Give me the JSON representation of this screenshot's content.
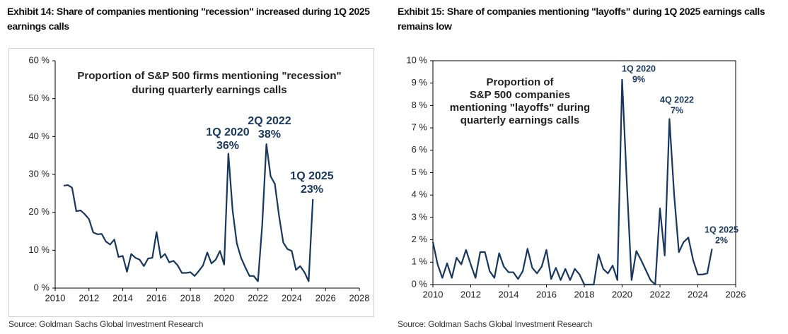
{
  "chart_data": [
    {
      "type": "line",
      "title": "Exhibit 14: Share of companies mentioning \"recession\" increased during 1Q 2025 earnings calls",
      "source": "Source: Goldman Sachs Global Investment Research",
      "inset": [
        "Proportion of S&P 500 firms mentioning \"recession\"",
        "during quarterly earnings calls"
      ],
      "annotations": [
        [
          "1Q 2020",
          "36%"
        ],
        [
          "2Q 2022",
          "38%"
        ],
        [
          "1Q 2025",
          "23%"
        ]
      ],
      "color": "#17375e",
      "x": [
        2010.5,
        2010.75,
        2011,
        2011.25,
        2011.5,
        2011.75,
        2012,
        2012.25,
        2012.5,
        2012.75,
        2013,
        2013.25,
        2013.5,
        2013.75,
        2014,
        2014.25,
        2014.5,
        2014.75,
        2015,
        2015.25,
        2015.5,
        2015.75,
        2016,
        2016.25,
        2016.5,
        2016.75,
        2017,
        2017.25,
        2017.5,
        2017.75,
        2018,
        2018.25,
        2018.5,
        2018.75,
        2019,
        2019.25,
        2019.5,
        2019.75,
        2020,
        2020.25,
        2020.5,
        2020.75,
        2021,
        2021.25,
        2021.5,
        2021.75,
        2022,
        2022.25,
        2022.5,
        2022.75,
        2023,
        2023.25,
        2023.5,
        2023.75,
        2024,
        2024.25,
        2024.5,
        2024.75,
        2025,
        2025.25
      ],
      "values": [
        27,
        27.2,
        26.5,
        20.3,
        20.5,
        19.5,
        18.2,
        14.7,
        14.2,
        14.3,
        12.3,
        11.5,
        12.8,
        8.2,
        8.5,
        4.3,
        9,
        8,
        7.5,
        5.8,
        7.8,
        8,
        14.8,
        8,
        9,
        6.8,
        7.2,
        6,
        4,
        4,
        4.2,
        3.2,
        4.5,
        6,
        9.4,
        6.5,
        7.5,
        9.8,
        6.2,
        35.5,
        20.5,
        11.8,
        8,
        5.5,
        3.2,
        3.2,
        1.8,
        16.5,
        38,
        29.5,
        27.5,
        19,
        12,
        10.3,
        9.8,
        4.8,
        5.8,
        4.2,
        1.8,
        23.5
      ],
      "xlim": [
        2010,
        2028
      ],
      "xticks": [
        2010,
        2012,
        2014,
        2016,
        2018,
        2020,
        2022,
        2024,
        2026,
        2028
      ],
      "ylim": [
        0,
        60
      ],
      "yticks": [
        {
          "value": 0,
          "label": "0 %"
        },
        {
          "value": 10,
          "label": "10 %"
        },
        {
          "value": 20,
          "label": "20 %"
        },
        {
          "value": 30,
          "label": "30 %"
        },
        {
          "value": 40,
          "label": "40 %"
        },
        {
          "value": 50,
          "label": "50 %"
        },
        {
          "value": 60,
          "label": "60 %"
        }
      ]
    },
    {
      "type": "line",
      "title": "Exhibit 15: Share of companies mentioning \"layoffs\" during 1Q 2025 earnings calls remains low",
      "source": "Source: Goldman Sachs Global Investment Research",
      "inset": [
        "Proportion of",
        "S&P 500 companies",
        "mentioning \"layoffs\" during",
        "quarterly earnings calls"
      ],
      "annotations": [
        [
          "1Q 2020",
          "9%"
        ],
        [
          "4Q 2022",
          "7%"
        ],
        [
          "1Q 2025",
          "2%"
        ]
      ],
      "color": "#17375e",
      "x": [
        2010,
        2010.25,
        2010.5,
        2010.75,
        2011,
        2011.25,
        2011.5,
        2011.75,
        2012,
        2012.25,
        2012.5,
        2012.75,
        2013,
        2013.25,
        2013.5,
        2013.75,
        2014,
        2014.25,
        2014.5,
        2014.75,
        2015,
        2015.25,
        2015.5,
        2015.75,
        2016,
        2016.25,
        2016.5,
        2016.75,
        2017,
        2017.25,
        2017.5,
        2017.75,
        2018,
        2018.25,
        2018.5,
        2018.75,
        2019,
        2019.25,
        2019.5,
        2019.75,
        2020,
        2020.25,
        2020.5,
        2020.75,
        2021,
        2021.25,
        2021.5,
        2021.75,
        2022,
        2022.25,
        2022.5,
        2022.75,
        2023,
        2023.25,
        2023.5,
        2023.75,
        2024,
        2024.25,
        2024.5,
        2024.75
      ],
      "values": [
        1.9,
        0.9,
        0.3,
        0.95,
        0.3,
        1.2,
        0.9,
        1.55,
        0.9,
        0.3,
        1.45,
        1.45,
        0.6,
        0.3,
        1.4,
        0.8,
        0.55,
        0.55,
        0.25,
        0.6,
        1.6,
        0.75,
        0.5,
        0.8,
        1.55,
        0.25,
        0.75,
        0.2,
        0.7,
        0.2,
        0.7,
        0.45,
        0,
        0,
        0,
        1.35,
        0.7,
        0.5,
        0.85,
        0.2,
        9.15,
        4.5,
        0.2,
        1.5,
        1.1,
        0.65,
        0.2,
        0,
        3.4,
        1.3,
        7.4,
        4,
        1.45,
        1.9,
        2.1,
        1.1,
        0.45,
        0.45,
        0.5,
        1.6
      ],
      "xlim": [
        2010,
        2026
      ],
      "xticks": [
        2010,
        2012,
        2014,
        2016,
        2018,
        2020,
        2022,
        2024,
        2026
      ],
      "ylim": [
        0,
        10
      ],
      "yticks": [
        {
          "value": 0,
          "label": "0 %"
        },
        {
          "value": 1,
          "label": "1 %"
        },
        {
          "value": 2,
          "label": "2 %"
        },
        {
          "value": 3,
          "label": "3 %"
        },
        {
          "value": 4,
          "label": "4 %"
        },
        {
          "value": 5,
          "label": "5 %"
        },
        {
          "value": 6,
          "label": "6 %"
        },
        {
          "value": 7,
          "label": "7 %"
        },
        {
          "value": 8,
          "label": "8 %"
        },
        {
          "value": 9,
          "label": "9 %"
        },
        {
          "value": 10,
          "label": "10 %"
        }
      ]
    }
  ]
}
